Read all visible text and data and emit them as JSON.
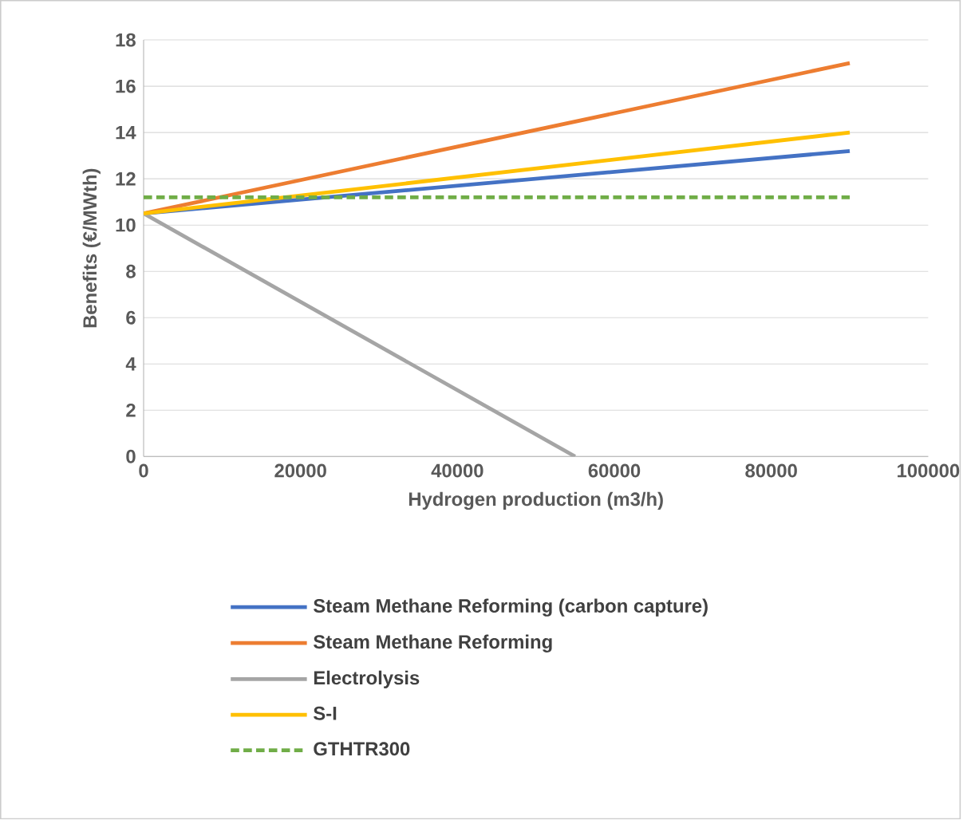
{
  "chart_data": {
    "type": "line",
    "xlabel": "Hydrogen production (m3/h)",
    "ylabel": "Benefits (€/MWth)",
    "xlim": [
      0,
      100000
    ],
    "ylim": [
      0,
      18
    ],
    "xticks": [
      0,
      20000,
      40000,
      60000,
      80000,
      100000
    ],
    "yticks": [
      0,
      2,
      4,
      6,
      8,
      10,
      12,
      14,
      16,
      18
    ],
    "grid": "y",
    "legend": "bottom",
    "series": [
      {
        "name": "Steam Methane Reforming (carbon capture)",
        "color": "#4472c4",
        "x": [
          0,
          90000
        ],
        "values": [
          10.5,
          13.2
        ]
      },
      {
        "name": "Steam Methane Reforming",
        "color": "#ed7d31",
        "x": [
          0,
          90000
        ],
        "values": [
          10.5,
          17.0
        ]
      },
      {
        "name": "Electrolysis",
        "color": "#a5a5a5",
        "x": [
          0,
          55000
        ],
        "values": [
          10.5,
          0
        ]
      },
      {
        "name": "S-I",
        "color": "#ffc000",
        "x": [
          0,
          90000
        ],
        "values": [
          10.5,
          14.0
        ]
      },
      {
        "name": "GTHTR300",
        "color": "#70ad47",
        "x": [
          0,
          90000
        ],
        "values": [
          11.2,
          11.2
        ],
        "line_style": "dashed"
      }
    ]
  }
}
